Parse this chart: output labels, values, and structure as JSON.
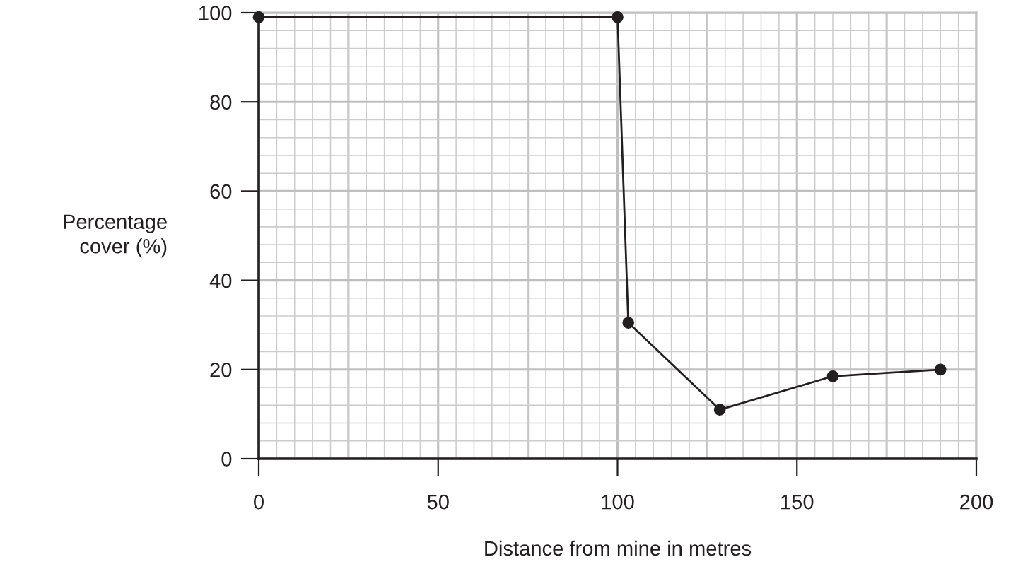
{
  "chart_data": {
    "type": "line",
    "xlabel": "Distance from mine in metres",
    "ylabel": "Percentage\ncover (%)",
    "x": [
      0,
      100,
      103,
      128.5,
      160,
      190
    ],
    "series": [
      {
        "color": "#231f20",
        "values": [
          99,
          99,
          30.5,
          11,
          18.5,
          20
        ]
      }
    ],
    "xlim": [
      0,
      200
    ],
    "ylim": [
      0,
      100
    ],
    "xticks": [
      0,
      50,
      100,
      150,
      200
    ],
    "yticks": [
      0,
      20,
      40,
      60,
      80,
      100
    ],
    "grid": true,
    "marker": "circle",
    "line_style": "solid"
  }
}
